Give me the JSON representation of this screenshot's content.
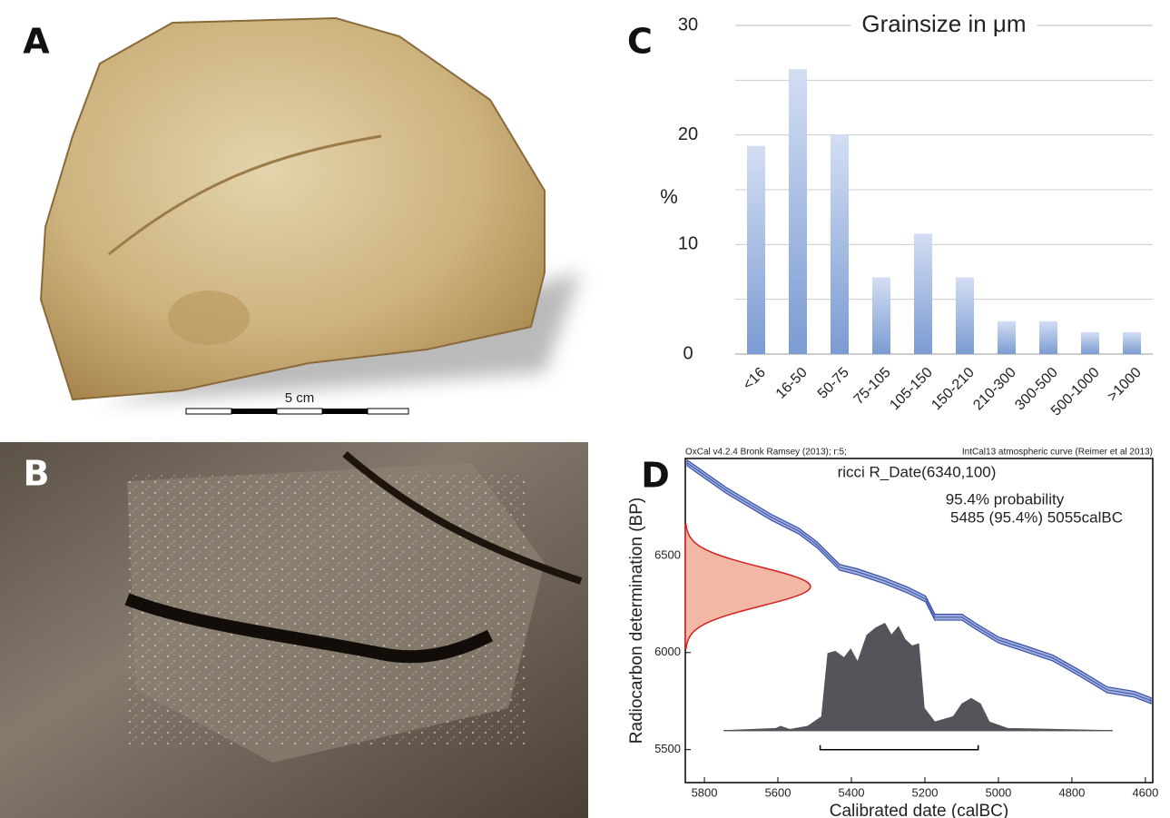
{
  "panels": {
    "a": "A",
    "b": "B",
    "c": "C",
    "d": "D"
  },
  "scale_bar": "5 cm",
  "chart_data": [
    {
      "type": "bar",
      "title": "Grainsize in μm",
      "ylabel": "%",
      "categories": [
        "<16",
        "16-50",
        "50-75",
        "75-105",
        "105-150",
        "150-210",
        "210-300",
        "300-500",
        "500-1000",
        ">1000"
      ],
      "values": [
        19,
        26,
        20,
        7,
        11,
        7,
        3,
        3,
        2,
        2
      ],
      "color": "#7b9bd3",
      "ylim": [
        0,
        30
      ],
      "yticks": [
        0,
        10,
        20,
        30
      ],
      "minor_yticks": [
        5,
        15,
        25
      ],
      "grid": true
    },
    {
      "type": "calibration",
      "header_left": "OxCal v4.2.4 Bronk Ramsey (2013); r:5;",
      "header_right": "IntCal13 atmospheric curve (Reimer et al 2013)",
      "title": "ricci R_Date(6340,100)",
      "annotations": [
        "95.4% probability",
        "5485 (95.4%)  5055calBC"
      ],
      "xlabel": "Calibrated date (calBC)",
      "ylabel": "Radiocarbon determination (BP)",
      "xlim": [
        5852,
        4580
      ],
      "ylim": [
        5330,
        7000
      ],
      "xticks": [
        5800,
        5600,
        5400,
        5200,
        5000,
        4800,
        4600
      ],
      "yticks": [
        5500,
        6000,
        6500
      ],
      "curve": {
        "x": [
          5847,
          5741,
          5617,
          5543,
          5494,
          5432,
          5383,
          5309,
          5247,
          5198,
          5173,
          5099,
          5062,
          5000,
          4926,
          4852,
          4778,
          4704,
          4630,
          4585
        ],
        "y": [
          6977,
          6836,
          6696,
          6626,
          6556,
          6439,
          6416,
          6369,
          6322,
          6276,
          6182,
          6182,
          6136,
          6065,
          6019,
          5972,
          5893,
          5808,
          5785,
          5752
        ],
        "sigma": 15,
        "color": "#3a4fa8",
        "band_color": "#9fb0dd"
      },
      "r_date": {
        "mean": 6340,
        "sd": 100,
        "color": "#d42020",
        "fill": "#f2b8a4"
      },
      "density": {
        "x": [
          5748,
          5605,
          5593,
          5568,
          5519,
          5481,
          5464,
          5444,
          5420,
          5402,
          5383,
          5358,
          5333,
          5309,
          5291,
          5272,
          5254,
          5235,
          5217,
          5202,
          5173,
          5123,
          5099,
          5074,
          5049,
          5025,
          4975,
          4689
        ],
        "values": [
          0,
          0.02,
          0.04,
          0.01,
          0.04,
          0.13,
          0.72,
          0.74,
          0.68,
          0.76,
          0.64,
          0.89,
          0.96,
          1.0,
          0.89,
          0.97,
          0.85,
          0.79,
          0.81,
          0.21,
          0.08,
          0.13,
          0.25,
          0.3,
          0.25,
          0.08,
          0.02,
          0
        ],
        "baseline": 5598,
        "color": "#57535a"
      },
      "range": [
        5485,
        5055
      ]
    }
  ]
}
